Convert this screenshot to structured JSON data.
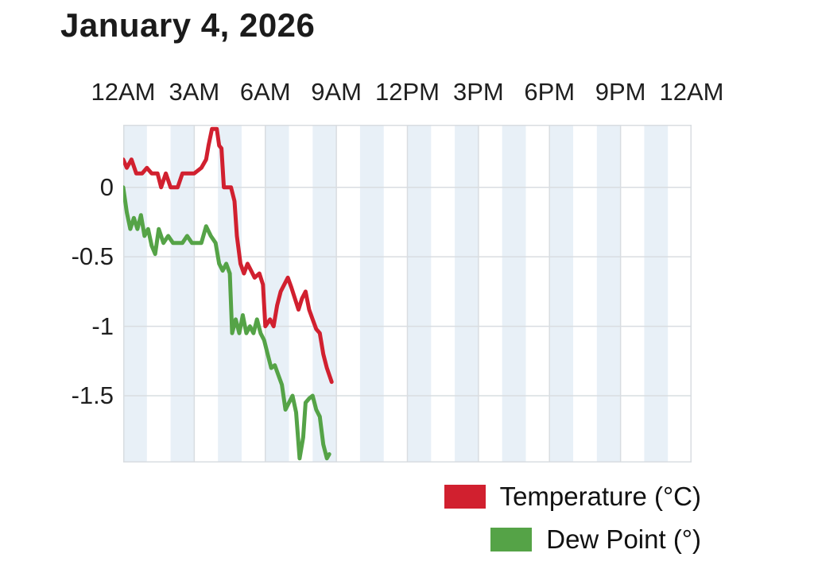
{
  "chart_data": {
    "type": "line",
    "title": "January 4, 2026",
    "x_axis": {
      "position": "top",
      "range_hours": [
        0,
        24
      ],
      "tick_hours": [
        0,
        3,
        6,
        9,
        12,
        15,
        18,
        21,
        24
      ],
      "tick_labels": [
        "12AM",
        "3AM",
        "6AM",
        "9AM",
        "12PM",
        "3PM",
        "6PM",
        "9PM",
        "12AM"
      ]
    },
    "y_axis": {
      "range": [
        -1.98,
        0.45
      ],
      "tick_values": [
        0,
        -0.5,
        -1,
        -1.5
      ],
      "tick_labels": [
        "0",
        "-0.5",
        "-1",
        "-1.5"
      ]
    },
    "grid": true,
    "legend": {
      "position": "bottom-right",
      "entries": [
        "Temperature (°C)",
        "Dew Point (°)"
      ]
    },
    "style": {
      "background": "#ffffff",
      "band_color": "#e8f0f7",
      "grid_color": "#d9dde1",
      "title_color": "#1b1b1b",
      "label_color": "#1f1f1f"
    },
    "series": [
      {
        "name": "Temperature (°C)",
        "color": "#d1202f",
        "points": [
          [
            0.0,
            0.2
          ],
          [
            0.15,
            0.14
          ],
          [
            0.35,
            0.2
          ],
          [
            0.55,
            0.1
          ],
          [
            0.8,
            0.1
          ],
          [
            1.0,
            0.14
          ],
          [
            1.2,
            0.1
          ],
          [
            1.45,
            0.1
          ],
          [
            1.6,
            0.0
          ],
          [
            1.8,
            0.1
          ],
          [
            2.0,
            0.0
          ],
          [
            2.3,
            0.0
          ],
          [
            2.5,
            0.1
          ],
          [
            2.8,
            0.1
          ],
          [
            3.0,
            0.1
          ],
          [
            3.3,
            0.14
          ],
          [
            3.5,
            0.2
          ],
          [
            3.6,
            0.3
          ],
          [
            3.75,
            0.42
          ],
          [
            3.95,
            0.42
          ],
          [
            4.05,
            0.3
          ],
          [
            4.15,
            0.28
          ],
          [
            4.25,
            0.0
          ],
          [
            4.55,
            0.0
          ],
          [
            4.7,
            -0.1
          ],
          [
            4.8,
            -0.35
          ],
          [
            4.95,
            -0.55
          ],
          [
            5.1,
            -0.62
          ],
          [
            5.25,
            -0.55
          ],
          [
            5.4,
            -0.6
          ],
          [
            5.55,
            -0.65
          ],
          [
            5.75,
            -0.62
          ],
          [
            5.9,
            -0.7
          ],
          [
            6.0,
            -1.0
          ],
          [
            6.2,
            -0.95
          ],
          [
            6.35,
            -1.0
          ],
          [
            6.5,
            -0.85
          ],
          [
            6.65,
            -0.75
          ],
          [
            6.8,
            -0.7
          ],
          [
            6.95,
            -0.65
          ],
          [
            7.1,
            -0.72
          ],
          [
            7.25,
            -0.8
          ],
          [
            7.4,
            -0.88
          ],
          [
            7.55,
            -0.8
          ],
          [
            7.7,
            -0.75
          ],
          [
            7.85,
            -0.88
          ],
          [
            8.0,
            -0.95
          ],
          [
            8.15,
            -1.02
          ],
          [
            8.3,
            -1.05
          ],
          [
            8.45,
            -1.2
          ],
          [
            8.6,
            -1.3
          ],
          [
            8.7,
            -1.35
          ],
          [
            8.8,
            -1.4
          ]
        ]
      },
      {
        "name": "Dew Point (°)",
        "color": "#55a347",
        "points": [
          [
            0.0,
            0.0
          ],
          [
            0.15,
            -0.18
          ],
          [
            0.3,
            -0.3
          ],
          [
            0.45,
            -0.22
          ],
          [
            0.6,
            -0.3
          ],
          [
            0.75,
            -0.2
          ],
          [
            0.9,
            -0.35
          ],
          [
            1.05,
            -0.3
          ],
          [
            1.2,
            -0.42
          ],
          [
            1.35,
            -0.48
          ],
          [
            1.5,
            -0.3
          ],
          [
            1.7,
            -0.4
          ],
          [
            1.9,
            -0.35
          ],
          [
            2.1,
            -0.4
          ],
          [
            2.3,
            -0.4
          ],
          [
            2.5,
            -0.4
          ],
          [
            2.7,
            -0.35
          ],
          [
            2.9,
            -0.4
          ],
          [
            3.1,
            -0.4
          ],
          [
            3.3,
            -0.4
          ],
          [
            3.5,
            -0.28
          ],
          [
            3.7,
            -0.35
          ],
          [
            3.9,
            -0.4
          ],
          [
            4.05,
            -0.55
          ],
          [
            4.2,
            -0.6
          ],
          [
            4.35,
            -0.55
          ],
          [
            4.5,
            -0.62
          ],
          [
            4.6,
            -1.05
          ],
          [
            4.75,
            -0.95
          ],
          [
            4.9,
            -1.05
          ],
          [
            5.05,
            -0.92
          ],
          [
            5.2,
            -1.05
          ],
          [
            5.35,
            -1.0
          ],
          [
            5.5,
            -1.05
          ],
          [
            5.65,
            -0.95
          ],
          [
            5.8,
            -1.05
          ],
          [
            5.95,
            -1.1
          ],
          [
            6.1,
            -1.2
          ],
          [
            6.25,
            -1.3
          ],
          [
            6.4,
            -1.28
          ],
          [
            6.55,
            -1.35
          ],
          [
            6.7,
            -1.42
          ],
          [
            6.85,
            -1.6
          ],
          [
            7.0,
            -1.55
          ],
          [
            7.15,
            -1.5
          ],
          [
            7.3,
            -1.62
          ],
          [
            7.45,
            -1.95
          ],
          [
            7.6,
            -1.8
          ],
          [
            7.7,
            -1.55
          ],
          [
            7.85,
            -1.52
          ],
          [
            8.0,
            -1.5
          ],
          [
            8.15,
            -1.6
          ],
          [
            8.3,
            -1.65
          ],
          [
            8.45,
            -1.85
          ],
          [
            8.6,
            -1.95
          ],
          [
            8.7,
            -1.92
          ]
        ]
      }
    ]
  }
}
